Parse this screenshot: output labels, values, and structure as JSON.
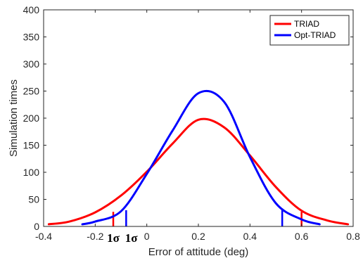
{
  "chart_data": {
    "type": "line",
    "xlabel": "Error of attitude (deg)",
    "ylabel": "Simulation times",
    "xlim": [
      -0.4,
      0.8
    ],
    "ylim": [
      0,
      400
    ],
    "xticks": [
      "-0.4",
      "-0.2",
      "0",
      "0.2",
      "0.4",
      "0.6",
      "0.8"
    ],
    "yticks": [
      "0",
      "50",
      "100",
      "150",
      "200",
      "250",
      "300",
      "350",
      "400"
    ],
    "grid": false,
    "legend_position": "top-right",
    "series": [
      {
        "name": "TRIAD",
        "color": "#ff0000",
        "x": [
          -0.38,
          -0.3,
          -0.2,
          -0.1,
          0.0,
          0.1,
          0.2,
          0.3,
          0.4,
          0.5,
          0.6,
          0.7,
          0.78
        ],
        "y": [
          4,
          9,
          26,
          57,
          101,
          153,
          197,
          183,
          131,
          73,
          29,
          11,
          4
        ]
      },
      {
        "name": "Opt-TRIAD",
        "color": "#0000ff",
        "x": [
          -0.25,
          -0.2,
          -0.1,
          0.0,
          0.1,
          0.2,
          0.3,
          0.4,
          0.5,
          0.6,
          0.67
        ],
        "y": [
          4,
          9,
          28,
          97,
          177,
          246,
          230,
          128,
          43,
          13,
          4
        ]
      }
    ],
    "annotations": [
      {
        "text": "1σ",
        "x": -0.13,
        "y": 0
      },
      {
        "text": "1σ",
        "x": -0.06,
        "y": 0
      }
    ],
    "sigma_markers": [
      {
        "series": "TRIAD",
        "color": "#ff0000",
        "x": -0.13,
        "y": 27
      },
      {
        "series": "TRIAD",
        "color": "#ff0000",
        "x": 0.6,
        "y": 27
      },
      {
        "series": "Opt-TRIAD",
        "color": "#0000ff",
        "x": -0.08,
        "y": 30
      },
      {
        "series": "Opt-TRIAD",
        "color": "#0000ff",
        "x": 0.525,
        "y": 33
      }
    ]
  }
}
